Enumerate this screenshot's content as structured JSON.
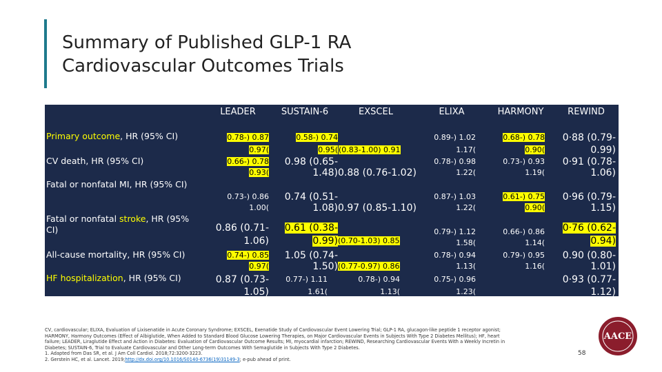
{
  "title": [
    "Summary of Published GLP-1 RA",
    "Cardiovascular Outcomes Trials"
  ],
  "table": {
    "columns": [
      "LEADER",
      "SUSTAIN-6",
      "EXSCEL",
      "ELIXA",
      "HARMONY",
      "REWIND"
    ],
    "rows": [
      [
        "Primary outcome",
        ", HR (95% CI)"
      ],
      [
        "CV death, HR (95% CI)"
      ],
      [
        "Fatal or nonfatal MI, HR (95% CI)"
      ],
      [
        "Fatal or nonfatal ",
        "stroke",
        ", HR (95% CI)"
      ],
      [
        "All-cause mortality, HR (95% CI)"
      ],
      [
        "HF hospitalization",
        ", HR (95% CI)"
      ]
    ],
    "cells": [
      [
        "0.78-) 0.87",
        "0.97(",
        "0.66-) 0.78",
        "0.93(",
        "0.73-) 0.86",
        "1.00(",
        "0.86 (0.71-",
        "1.06)",
        "0.74-) 0.85",
        "0.97(",
        "0.87 (0.73-",
        "1.05)"
      ],
      [
        "0.58-) 0.74",
        "0.95(",
        "(0.83-1.00) 0.91",
        "0.98 (0.65-",
        "1.48)",
        "0.88 (0.76-1.02)",
        "0.74 (0.51-",
        "1.08)",
        "0.97 (0.85-1.10)",
        "0.61 (0.38-",
        "0.99)",
        "(0.70-1.03) 0.85",
        "1.05 (0.74-",
        "1.50)",
        "(0.77-0.97) 0.86",
        "0.77-) 1.11",
        "1.61("
      ],
      [
        "0.78-) 0.94",
        "1.13("
      ],
      [
        "0.89-) 1.02",
        "1.17(",
        "0.78-) 0.98",
        "1.22(",
        "0.87-) 1.03",
        "1.22(",
        "0.79-) 1.12",
        "1.58(",
        "0.78-) 0.94",
        "1.13(",
        "0.75-) 0.96",
        "1.23("
      ],
      [
        "0.68-) 0.78",
        "0.90(",
        "0.73-) 0.93",
        "1.19(",
        "0.61-) 0.75",
        "0.90(",
        "0.66-) 0.86",
        "1.14(",
        "0.79-) 0.95",
        "1.16("
      ],
      [
        "0·88 (0.79-",
        "0.99)",
        "0·91 (0.78-",
        "1.06)",
        "0·96 (0.79-",
        "1.15)",
        "0·76 (0.62-",
        "0.94)",
        "0.90 (0.80-",
        "1.01)",
        "0·93 (0.77-",
        "1.12)"
      ]
    ]
  },
  "footnotes": [
    "CV, cardiovascular; ELIXA, Evaluation of Lixisenatide in Acute Coronary Syndrome; EXSCEL, Exenatide Study of Cardiovascular Event Lowering Trial; GLP-1 RA, glucagon-like peptide 1 receptor agonist;",
    "HARMONY, Harmony Outcomes (Effect of Albiglutide, When Added to Standard Blood Glucose Lowering Therapies, on Major Cardiovascular Events in Subjects With Type 2 Diabetes Mellitus); HF, heart",
    "failure; LEADER, Liraglutide Effect and Action in Diabetes: Evaluation of Cardiovascular Outcome Results; MI, myocardial infarction; REWIND, Researching Cardiovascular Events With a Weekly Incretin in",
    "Diabetes; SUSTAIN-6, Trial to Evaluate Cardiovascular and Other Long-term Outcomes With Semaglutide in Subjects With Type 2 Diabetes.",
    "1. Adapted from Das SR, et al. J Am Coll Cardiol. 2018;72:3200-3223."
  ],
  "reference2": [
    "2. Gerstein HC, et al. Lancet. 2019;",
    "http://dx.doi.org/10.1016/S0140-6736(19)31149-3",
    "; e-pub ahead of print."
  ],
  "page_number": "58",
  "logo": "AACE"
}
